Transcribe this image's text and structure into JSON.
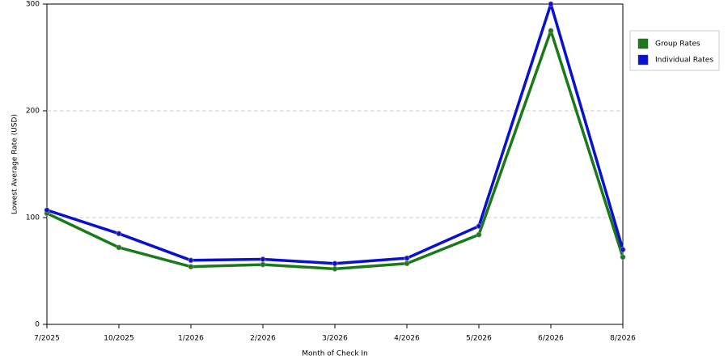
{
  "chart_data": {
    "type": "line",
    "x_label": "Month of Check In",
    "y_label": "Lowest Average Rate (USD)",
    "categories": [
      "7/2025",
      "10/2025",
      "1/2026",
      "2/2026",
      "3/2026",
      "4/2026",
      "5/2026",
      "6/2026",
      "8/2026"
    ],
    "series": [
      {
        "name": "Group Rates",
        "color": "#1a7a1a",
        "values": [
          104,
          72,
          54,
          56,
          52,
          57,
          84,
          275,
          63
        ]
      },
      {
        "name": "Individual Rates",
        "color": "#0a10d0",
        "values": [
          107,
          85,
          60,
          61,
          57,
          62,
          92,
          300,
          70
        ]
      }
    ],
    "ylim": [
      0,
      300
    ],
    "yticks": [
      0,
      100,
      200,
      300
    ],
    "grid": true,
    "legend": "top-right"
  }
}
